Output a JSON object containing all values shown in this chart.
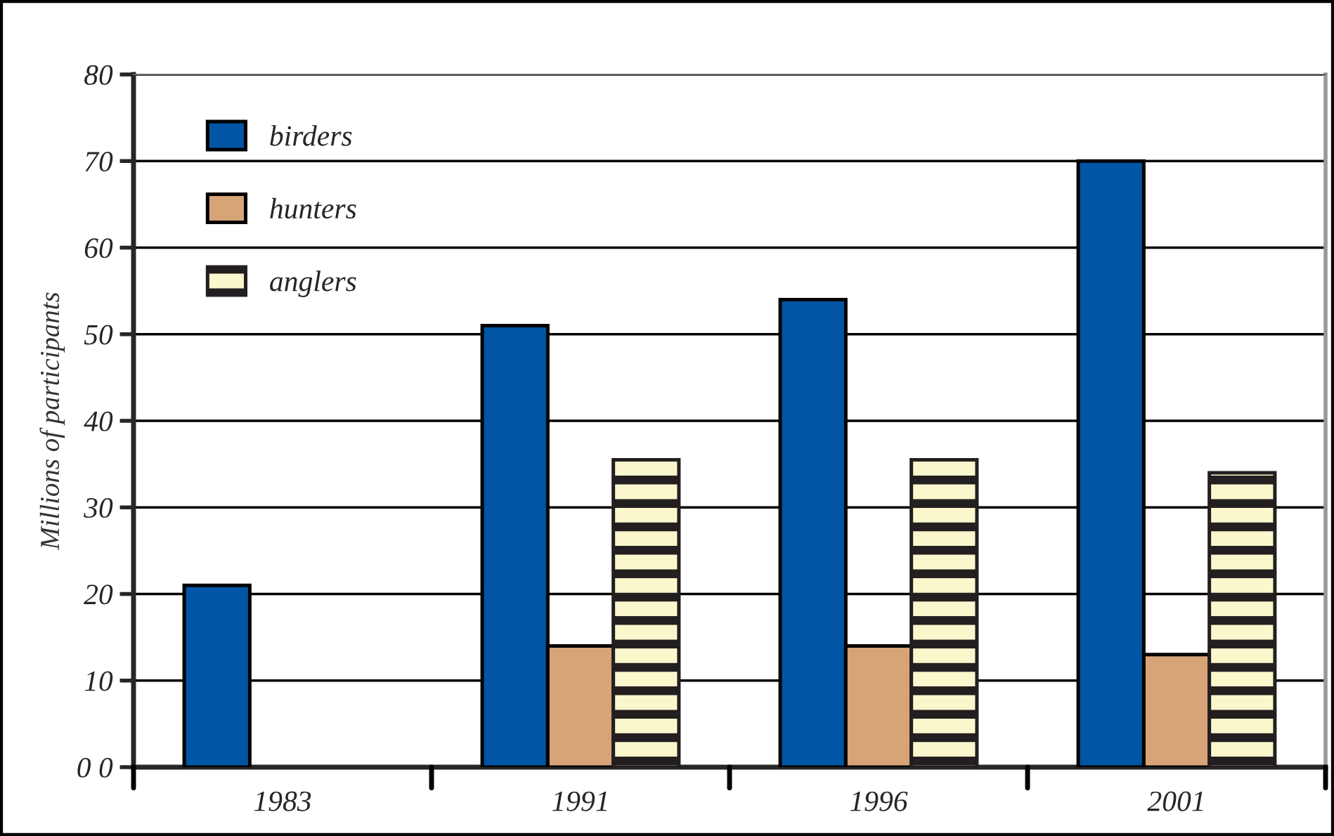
{
  "chart_data": {
    "type": "bar",
    "ylabel": "Millions of participants",
    "categories": [
      "1983",
      "1991",
      "1996",
      "2001"
    ],
    "series": [
      {
        "name": "birders",
        "color": "#0055a5",
        "values": [
          21,
          51,
          54,
          70
        ]
      },
      {
        "name": "hunters",
        "color": "#d6a477",
        "values": [
          null,
          14,
          14,
          13
        ]
      },
      {
        "name": "anglers",
        "color": "#231f20",
        "values": [
          null,
          35.5,
          35.5,
          34
        ]
      }
    ],
    "ylim": [
      0,
      80
    ],
    "yticks": [
      {
        "value": 0,
        "label": "0 0"
      },
      10,
      20,
      30,
      40,
      50,
      60,
      70,
      80
    ],
    "grid": "y",
    "legend": "top left"
  }
}
